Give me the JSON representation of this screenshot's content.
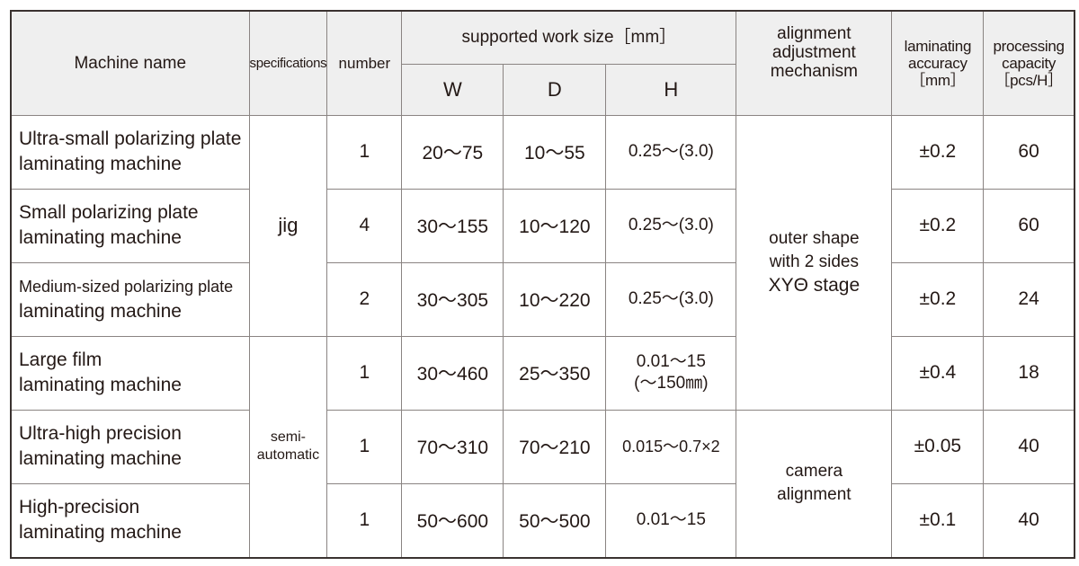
{
  "header": {
    "machine_name": "Machine name",
    "specifications": "specifications",
    "number": "number",
    "work_size": "supported work size［mm］",
    "w": "W",
    "d": "D",
    "h": "H",
    "alignment": "alignment adjustment mechanism",
    "accuracy": "laminating accuracy ［mm］",
    "capacity": "processing capacity ［pcs/H］"
  },
  "spec_groups": {
    "jig": "jig",
    "semi": "semi-automatic"
  },
  "alignment_groups": {
    "stage_line1": "outer shape",
    "stage_line2": "with 2 sides",
    "stage_line3": "XYΘ stage",
    "camera": "camera alignment"
  },
  "rows": [
    {
      "name1": "Ultra-small polarizing plate",
      "name2": "laminating machine",
      "number": "1",
      "w": "20～75",
      "d": "10～55",
      "h": "0.25～(3.0)",
      "accuracy": "±0.2",
      "capacity": "60"
    },
    {
      "name1": "Small polarizing plate",
      "name2": "laminating machine",
      "number": "4",
      "w": "30～155",
      "d": "10～120",
      "h": "0.25～(3.0)",
      "accuracy": "±0.2",
      "capacity": "60"
    },
    {
      "name1": "Medium-sized polarizing plate",
      "name2": "laminating machine",
      "number": "2",
      "w": "30～305",
      "d": "10～220",
      "h": "0.25～(3.0)",
      "accuracy": "±0.2",
      "capacity": "24"
    },
    {
      "name1": "Large film",
      "name2": "laminating machine",
      "number": "1",
      "w": "30～460",
      "d": "25～350",
      "h": "0.01～15",
      "h2": "(～150㎜)",
      "accuracy": "±0.4",
      "capacity": "18"
    },
    {
      "name1": "Ultra-high precision",
      "name2": "laminating machine",
      "number": "1",
      "w": "70～310",
      "d": "70～210",
      "h": "0.015～0.7×2",
      "accuracy": "±0.05",
      "capacity": "40"
    },
    {
      "name1": "High-precision",
      "name2": "laminating machine",
      "number": "1",
      "w": "50～600",
      "d": "50～500",
      "h": "0.01～15",
      "accuracy": "±0.1",
      "capacity": "40"
    }
  ]
}
